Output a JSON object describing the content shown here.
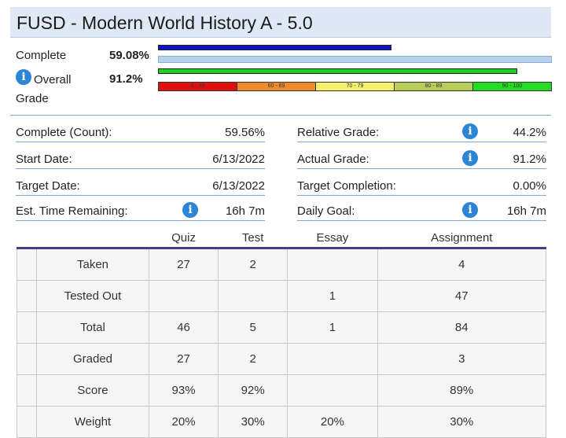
{
  "header": {
    "title": "FUSD - Modern World History A - 5.0"
  },
  "progress": {
    "complete_label": "Complete",
    "complete_value": "59.08%",
    "complete_fraction": 0.5908,
    "overall_label": "Overall",
    "grade_label": "Grade",
    "overall_value": "91.2%",
    "overall_fraction": 0.912,
    "complete_color": "#0a14c8",
    "overall_color": "#1fd21f"
  },
  "grade_scale": [
    {
      "label": "0 - 59",
      "color": "#e01010"
    },
    {
      "label": "60 - 69",
      "color": "#ee8a2a"
    },
    {
      "label": "70 - 79",
      "color": "#f4f06a"
    },
    {
      "label": "80 - 89",
      "color": "#b8cc5a"
    },
    {
      "label": "90 - 100",
      "color": "#22dd22"
    }
  ],
  "info_left": [
    {
      "label": "Complete (Count):",
      "value": "59.56%",
      "icon": false
    },
    {
      "label": "Start Date:",
      "value": "6/13/2022",
      "icon": false
    },
    {
      "label": "Target Date:",
      "value": "6/13/2022",
      "icon": false
    },
    {
      "label": "Est. Time Remaining:",
      "value": "16h 7m",
      "icon": true
    }
  ],
  "info_right": [
    {
      "label": "Relative Grade:",
      "value": "44.2%",
      "icon": true
    },
    {
      "label": "Actual Grade:",
      "value": "91.2%",
      "icon": true
    },
    {
      "label": "Target Completion:",
      "value": "0.00%",
      "icon": false
    },
    {
      "label": "Daily Goal:",
      "value": "16h 7m",
      "icon": true
    }
  ],
  "table": {
    "columns": [
      "Quiz",
      "Test",
      "Essay",
      "Assignment"
    ],
    "rows": [
      {
        "label": "Taken",
        "cells": [
          "27",
          "2",
          "",
          "4"
        ]
      },
      {
        "label": "Tested Out",
        "cells": [
          "",
          "",
          "1",
          "47"
        ]
      },
      {
        "label": "Total",
        "cells": [
          "46",
          "5",
          "1",
          "84"
        ]
      },
      {
        "label": "Graded",
        "cells": [
          "27",
          "2",
          "",
          "3"
        ]
      },
      {
        "label": "Score",
        "cells": [
          "93%",
          "92%",
          "",
          "89%"
        ]
      },
      {
        "label": "Weight",
        "cells": [
          "20%",
          "30%",
          "20%",
          "30%"
        ]
      }
    ]
  },
  "icon_glyph": "i"
}
